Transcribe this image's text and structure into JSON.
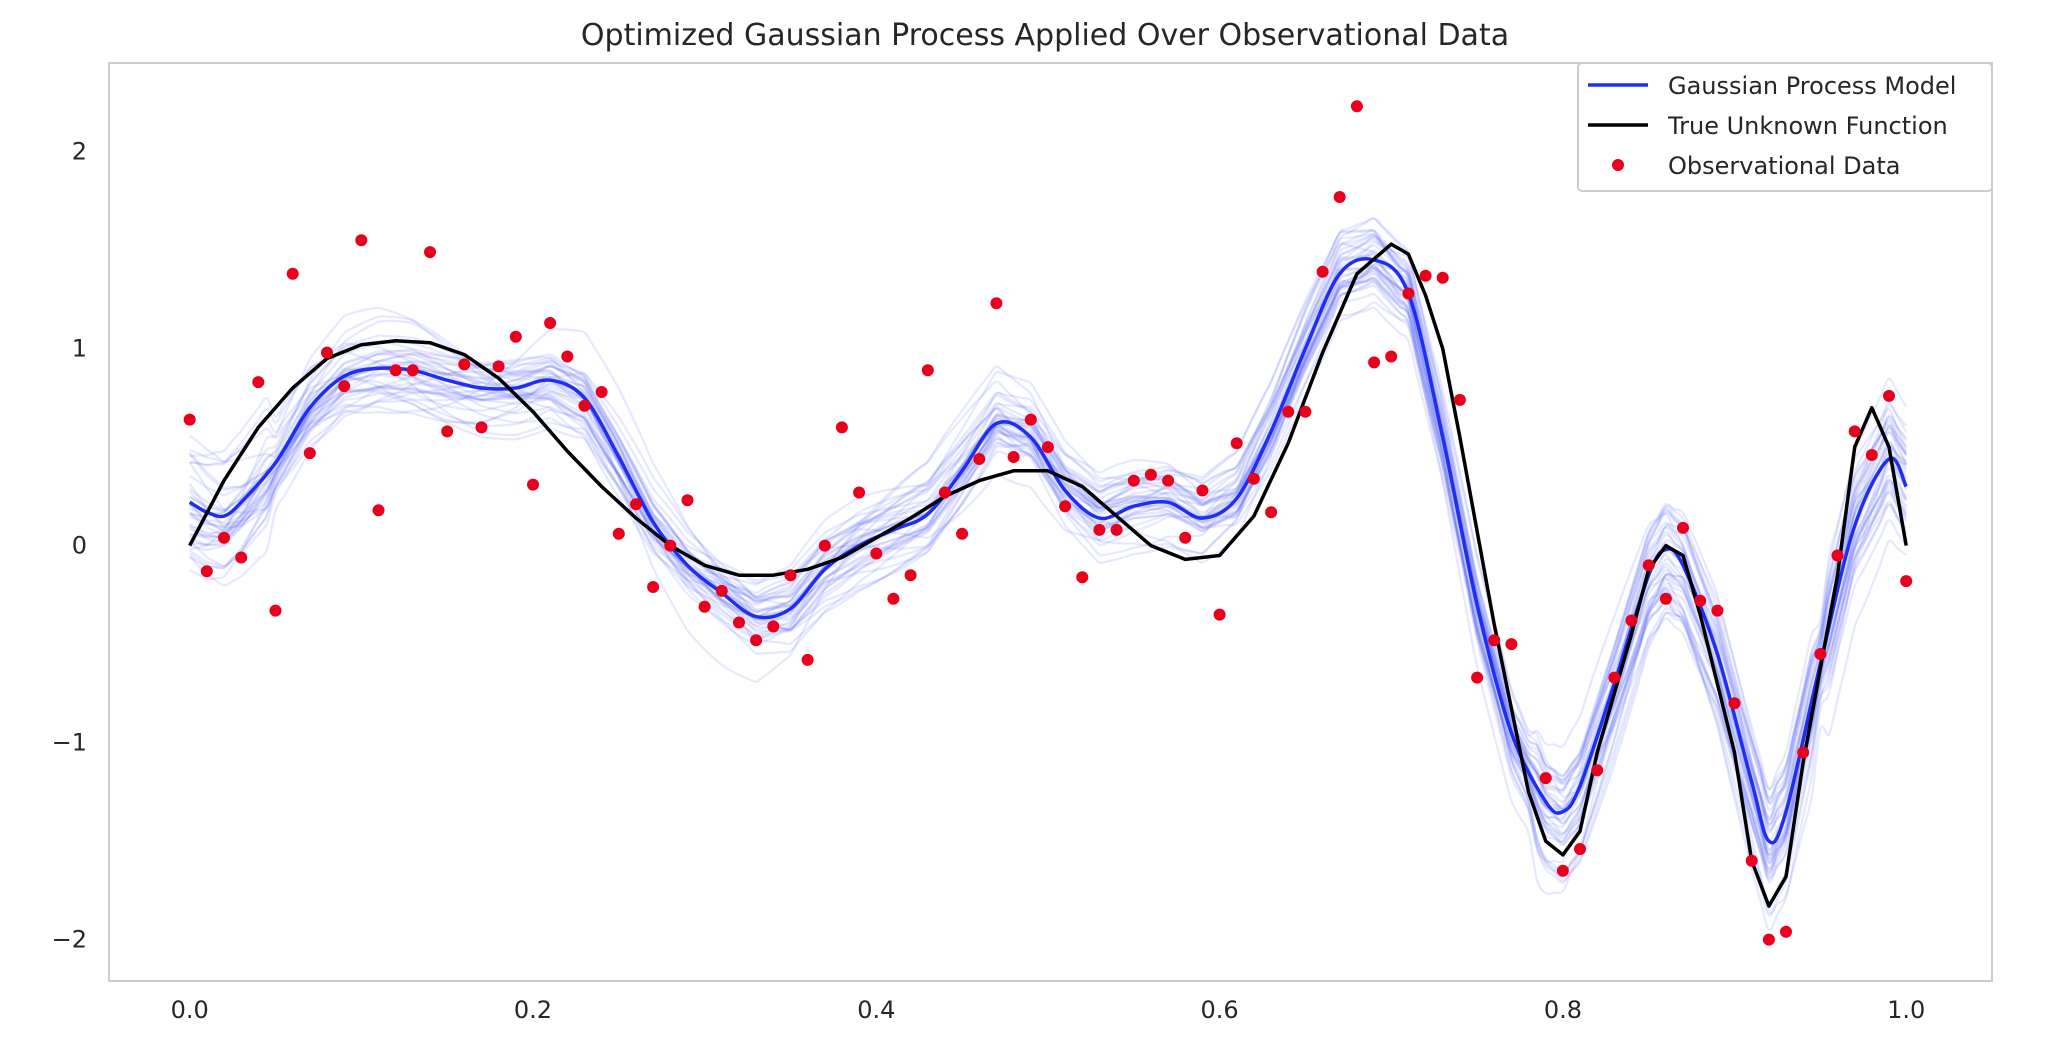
{
  "chart_data": {
    "type": "line",
    "title": "Optimized Gaussian Process Applied Over Observational Data",
    "xlabel": "",
    "ylabel": "",
    "xlim": [
      -0.047,
      1.05
    ],
    "ylim": [
      -2.21,
      2.45
    ],
    "x_ticks": [
      0.0,
      0.2,
      0.4,
      0.6,
      0.8,
      1.0
    ],
    "x_tick_labels": [
      "0.0",
      "0.2",
      "0.4",
      "0.6",
      "0.8",
      "1.0"
    ],
    "y_ticks": [
      2,
      1,
      0,
      -1,
      -2
    ],
    "y_tick_labels": [
      "2",
      "1",
      "0",
      "−1",
      "−2"
    ],
    "grid": false,
    "legend_position": "top-right",
    "series": [
      {
        "name": "Gaussian Process Model",
        "kind": "line",
        "color": "#1f2ef5",
        "x": [
          0.0,
          0.01,
          0.02,
          0.03,
          0.05,
          0.07,
          0.09,
          0.11,
          0.13,
          0.15,
          0.17,
          0.19,
          0.21,
          0.23,
          0.25,
          0.27,
          0.29,
          0.31,
          0.33,
          0.35,
          0.37,
          0.39,
          0.41,
          0.43,
          0.45,
          0.47,
          0.49,
          0.51,
          0.53,
          0.55,
          0.57,
          0.59,
          0.61,
          0.63,
          0.65,
          0.67,
          0.69,
          0.71,
          0.73,
          0.75,
          0.77,
          0.79,
          0.8,
          0.81,
          0.83,
          0.85,
          0.86,
          0.87,
          0.89,
          0.91,
          0.92,
          0.93,
          0.95,
          0.97,
          0.99,
          1.0
        ],
        "y": [
          0.22,
          0.17,
          0.15,
          0.22,
          0.42,
          0.7,
          0.86,
          0.9,
          0.89,
          0.84,
          0.8,
          0.8,
          0.84,
          0.75,
          0.45,
          0.12,
          -0.1,
          -0.24,
          -0.36,
          -0.32,
          -0.12,
          0.0,
          0.08,
          0.16,
          0.38,
          0.62,
          0.55,
          0.28,
          0.14,
          0.2,
          0.22,
          0.14,
          0.24,
          0.58,
          1.0,
          1.38,
          1.45,
          1.28,
          0.55,
          -0.3,
          -0.95,
          -1.3,
          -1.35,
          -1.22,
          -0.7,
          -0.15,
          -0.02,
          -0.1,
          -0.55,
          -1.2,
          -1.5,
          -1.35,
          -0.6,
          0.1,
          0.44,
          0.3
        ]
      },
      {
        "name": "True Unknown Function",
        "kind": "line",
        "color": "#000000",
        "x": [
          0.0,
          0.02,
          0.04,
          0.06,
          0.08,
          0.1,
          0.12,
          0.14,
          0.16,
          0.18,
          0.2,
          0.22,
          0.24,
          0.26,
          0.28,
          0.3,
          0.32,
          0.34,
          0.36,
          0.38,
          0.4,
          0.42,
          0.44,
          0.46,
          0.48,
          0.5,
          0.52,
          0.54,
          0.56,
          0.58,
          0.6,
          0.62,
          0.64,
          0.66,
          0.68,
          0.7,
          0.71,
          0.72,
          0.73,
          0.74,
          0.76,
          0.78,
          0.79,
          0.8,
          0.81,
          0.82,
          0.84,
          0.85,
          0.86,
          0.87,
          0.88,
          0.9,
          0.91,
          0.92,
          0.93,
          0.94,
          0.96,
          0.97,
          0.98,
          0.99,
          1.0
        ],
        "y": [
          0.0,
          0.33,
          0.6,
          0.8,
          0.95,
          1.02,
          1.04,
          1.03,
          0.97,
          0.85,
          0.68,
          0.48,
          0.3,
          0.14,
          0.0,
          -0.1,
          -0.15,
          -0.15,
          -0.12,
          -0.06,
          0.04,
          0.14,
          0.25,
          0.33,
          0.38,
          0.38,
          0.3,
          0.15,
          0.0,
          -0.07,
          -0.05,
          0.15,
          0.52,
          0.98,
          1.38,
          1.53,
          1.48,
          1.27,
          1.0,
          0.55,
          -0.4,
          -1.25,
          -1.5,
          -1.57,
          -1.45,
          -1.05,
          -0.45,
          -0.12,
          0.0,
          -0.05,
          -0.35,
          -1.05,
          -1.6,
          -1.83,
          -1.68,
          -1.1,
          -0.15,
          0.5,
          0.7,
          0.5,
          0.0
        ]
      },
      {
        "name": "Observational Data",
        "kind": "scatter",
        "color": "#e8001c",
        "x": [
          0.0,
          0.01,
          0.02,
          0.03,
          0.04,
          0.05,
          0.06,
          0.07,
          0.08,
          0.09,
          0.1,
          0.11,
          0.12,
          0.13,
          0.14,
          0.15,
          0.16,
          0.17,
          0.18,
          0.19,
          0.2,
          0.21,
          0.22,
          0.23,
          0.24,
          0.25,
          0.26,
          0.27,
          0.28,
          0.29,
          0.3,
          0.31,
          0.32,
          0.33,
          0.34,
          0.35,
          0.36,
          0.37,
          0.38,
          0.39,
          0.4,
          0.41,
          0.42,
          0.43,
          0.44,
          0.45,
          0.46,
          0.47,
          0.48,
          0.49,
          0.5,
          0.51,
          0.52,
          0.53,
          0.54,
          0.55,
          0.56,
          0.57,
          0.58,
          0.59,
          0.6,
          0.61,
          0.62,
          0.63,
          0.64,
          0.65,
          0.66,
          0.67,
          0.68,
          0.69,
          0.7,
          0.71,
          0.72,
          0.73,
          0.74,
          0.75,
          0.76,
          0.77,
          0.79,
          0.8,
          0.81,
          0.82,
          0.83,
          0.84,
          0.85,
          0.86,
          0.87,
          0.88,
          0.89,
          0.9,
          0.91,
          0.92,
          0.93,
          0.94,
          0.95,
          0.96,
          0.97,
          0.98,
          0.99,
          1.0
        ],
        "y": [
          0.64,
          -0.13,
          0.04,
          -0.06,
          0.83,
          -0.33,
          1.38,
          0.47,
          0.98,
          0.81,
          1.55,
          0.18,
          0.89,
          0.89,
          1.49,
          0.58,
          0.92,
          0.6,
          0.91,
          1.06,
          0.31,
          1.13,
          0.96,
          0.71,
          0.78,
          0.06,
          0.21,
          -0.21,
          0.0,
          0.23,
          -0.31,
          -0.23,
          -0.39,
          -0.48,
          -0.41,
          -0.15,
          -0.58,
          0.0,
          0.6,
          0.27,
          -0.04,
          -0.27,
          -0.15,
          0.89,
          0.27,
          0.06,
          0.44,
          1.23,
          0.45,
          0.64,
          0.5,
          0.2,
          -0.16,
          0.08,
          0.08,
          0.33,
          0.36,
          0.33,
          0.04,
          0.28,
          -0.35,
          0.52,
          0.34,
          0.17,
          0.68,
          0.68,
          1.39,
          1.77,
          2.23,
          0.93,
          0.96,
          1.28,
          1.37,
          1.36,
          0.74,
          -0.67,
          -0.48,
          -0.5,
          -1.18,
          -1.65,
          -1.54,
          -1.14,
          -0.67,
          -0.38,
          -0.1,
          -0.27,
          0.09,
          -0.28,
          -0.33,
          -0.8,
          -1.6,
          -2.0,
          -1.96,
          -1.05,
          -0.55,
          -0.05,
          0.58,
          0.46,
          0.76,
          -0.18
        ]
      }
    ],
    "samples": {
      "count": 40,
      "color": "#4b5cf5",
      "opacity": 0.14
    }
  }
}
